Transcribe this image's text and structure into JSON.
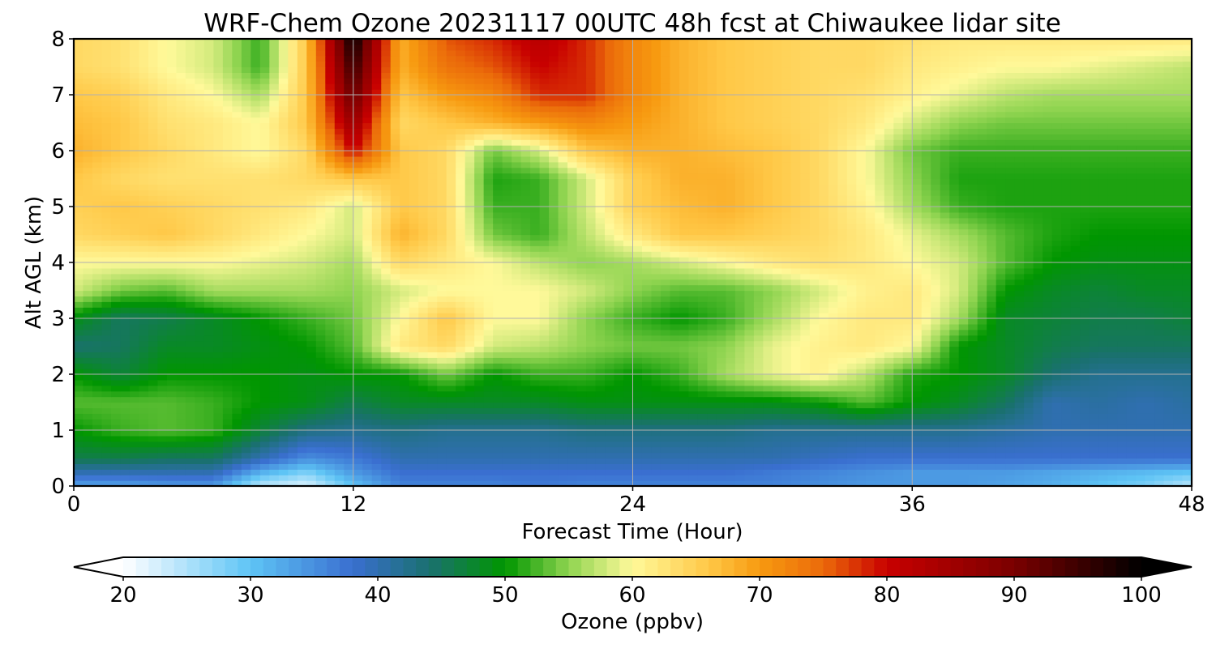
{
  "chart_data": {
    "type": "heatmap",
    "title": "WRF-Chem Ozone  20231117 00UTC 48h fcst at Chiwaukee lidar site",
    "xlabel": "Forecast Time (Hour)",
    "ylabel": "Alt AGL (km)",
    "xlim": [
      0,
      48
    ],
    "ylim": [
      0,
      8
    ],
    "x_ticks": [
      0,
      12,
      24,
      36,
      48
    ],
    "y_ticks": [
      0,
      1,
      2,
      3,
      4,
      5,
      6,
      7,
      8
    ],
    "grid": true,
    "x": [
      0,
      2,
      4,
      6,
      8,
      10,
      12,
      14,
      16,
      18,
      20,
      22,
      24,
      26,
      28,
      30,
      32,
      34,
      36,
      38,
      40,
      42,
      44,
      46,
      48
    ],
    "y": [
      0,
      0.25,
      0.5,
      1,
      1.5,
      2,
      2.5,
      3,
      3.5,
      4,
      4.5,
      5,
      5.5,
      6,
      6.5,
      7,
      7.5,
      8
    ],
    "z": [
      [
        33,
        33,
        34,
        34,
        24,
        22,
        30,
        36,
        36,
        36,
        37,
        36,
        36,
        36,
        36,
        36,
        35,
        34,
        34,
        34,
        33,
        32,
        30,
        28,
        24
      ],
      [
        40,
        40,
        40,
        40,
        32,
        28,
        34,
        38,
        38,
        38,
        38,
        38,
        38,
        38,
        38,
        37,
        36,
        35,
        34,
        34,
        34,
        33,
        32,
        31,
        30
      ],
      [
        46,
        46,
        45,
        45,
        40,
        35,
        37,
        40,
        40,
        40,
        40,
        40,
        40,
        40,
        40,
        40,
        39,
        38,
        38,
        38,
        38,
        38,
        38,
        38,
        38
      ],
      [
        50,
        52,
        53,
        52,
        47,
        43,
        42,
        43,
        42,
        42,
        42,
        43,
        43,
        43,
        43,
        42,
        42,
        42,
        42,
        42,
        41,
        40,
        40,
        40,
        40
      ],
      [
        53,
        53,
        53,
        52,
        50,
        49,
        46,
        48,
        48,
        48,
        48,
        49,
        49,
        49,
        49,
        49,
        50,
        53,
        50,
        48,
        45,
        40,
        41,
        40,
        41
      ],
      [
        50,
        47,
        50,
        50,
        50,
        49,
        50,
        50,
        54,
        50,
        52,
        52,
        50,
        52,
        56,
        59,
        61,
        57,
        51,
        50,
        48,
        44,
        42,
        42,
        42
      ],
      [
        44,
        45,
        48,
        48,
        49,
        50,
        53,
        62,
        64,
        58,
        57,
        55,
        54,
        54,
        55,
        59,
        61,
        62,
        60,
        50,
        48,
        46,
        45,
        45,
        45
      ],
      [
        49,
        45,
        46,
        48,
        50,
        52,
        54,
        60,
        66,
        60,
        60,
        55,
        52,
        50,
        52,
        56,
        60,
        62,
        62,
        56,
        48,
        47,
        46,
        46,
        47
      ],
      [
        58,
        54,
        53,
        56,
        56,
        56,
        55,
        58,
        60,
        60,
        60,
        58,
        55,
        53,
        53,
        55,
        58,
        61,
        62,
        58,
        50,
        48,
        47,
        48,
        48
      ],
      [
        60,
        60,
        60,
        60,
        59,
        58,
        56,
        64,
        62,
        60,
        57,
        55,
        56,
        58,
        60,
        62,
        63,
        62,
        60,
        58,
        53,
        50,
        49,
        49,
        49
      ],
      [
        64,
        65,
        66,
        64,
        62,
        60,
        58,
        68,
        64,
        54,
        52,
        57,
        62,
        66,
        66,
        65,
        64,
        62,
        59,
        56,
        53,
        51,
        50,
        50,
        50
      ],
      [
        65,
        66,
        65,
        64,
        63,
        62,
        58,
        66,
        64,
        52,
        52,
        58,
        65,
        67,
        68,
        66,
        64,
        61,
        56,
        52,
        51,
        51,
        51,
        51,
        51
      ],
      [
        66,
        64,
        63,
        63,
        63,
        64,
        66,
        66,
        64,
        51,
        52,
        58,
        65,
        68,
        68,
        66,
        64,
        60,
        55,
        51,
        51,
        51,
        51,
        51,
        51
      ],
      [
        68,
        66,
        64,
        62,
        60,
        64,
        80,
        66,
        64,
        54,
        58,
        66,
        68,
        68,
        67,
        66,
        64,
        60,
        54,
        52,
        52,
        52,
        52,
        52,
        52
      ],
      [
        67,
        66,
        63,
        62,
        60,
        66,
        86,
        64,
        66,
        68,
        70,
        72,
        70,
        68,
        66,
        65,
        64,
        62,
        58,
        55,
        54,
        54,
        54,
        54,
        54
      ],
      [
        66,
        65,
        62,
        60,
        56,
        66,
        92,
        66,
        70,
        72,
        78,
        78,
        72,
        68,
        66,
        65,
        64,
        63,
        61,
        59,
        57,
        56,
        56,
        56,
        56
      ],
      [
        64,
        63,
        60,
        58,
        52,
        66,
        96,
        68,
        74,
        76,
        80,
        78,
        72,
        68,
        66,
        65,
        64,
        64,
        62,
        61,
        60,
        60,
        59,
        58,
        57
      ],
      [
        64,
        63,
        60,
        58,
        52,
        66,
        100,
        68,
        76,
        78,
        82,
        78,
        72,
        68,
        66,
        65,
        64,
        64,
        63,
        62,
        62,
        62,
        62,
        62,
        62
      ]
    ],
    "colorbar": {
      "label": "Ozone  (ppbv)",
      "min": 20,
      "max": 100,
      "ticks": [
        20,
        30,
        40,
        50,
        60,
        70,
        80,
        90,
        100
      ],
      "extend": "both",
      "colors": [
        {
          "v": 20,
          "c": "#ffffff"
        },
        {
          "v": 30,
          "c": "#5ec4f5"
        },
        {
          "v": 38,
          "c": "#3a6fd0"
        },
        {
          "v": 44,
          "c": "#1a7070"
        },
        {
          "v": 50,
          "c": "#009600"
        },
        {
          "v": 55,
          "c": "#8fd450"
        },
        {
          "v": 60,
          "c": "#fff99a"
        },
        {
          "v": 66,
          "c": "#ffc847"
        },
        {
          "v": 70,
          "c": "#f79a10"
        },
        {
          "v": 75,
          "c": "#eb6a0a"
        },
        {
          "v": 80,
          "c": "#c80000"
        },
        {
          "v": 90,
          "c": "#7a0000"
        },
        {
          "v": 100,
          "c": "#000000"
        }
      ]
    }
  }
}
